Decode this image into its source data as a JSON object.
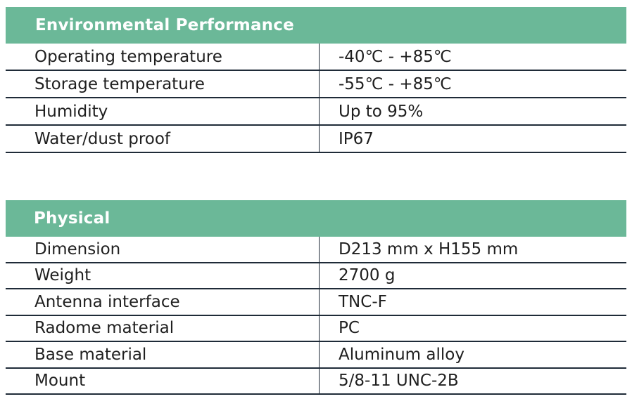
{
  "environmental": {
    "title": "Environmental Performance",
    "rows": [
      {
        "label": "Operating temperature",
        "value": "-40℃ - +85℃"
      },
      {
        "label": "Storage temperature",
        "value": "-55℃ - +85℃"
      },
      {
        "label": "Humidity",
        "value": "Up to 95%"
      },
      {
        "label": "Water/dust proof",
        "value": "IP67"
      }
    ]
  },
  "physical": {
    "title": "Physical",
    "rows": [
      {
        "label": "Dimension",
        "value": "D213 mm x H155 mm"
      },
      {
        "label": "Weight",
        "value": "2700 g"
      },
      {
        "label": "Antenna interface",
        "value": "TNC-F"
      },
      {
        "label": "Radome material",
        "value": "PC"
      },
      {
        "label": "Base material",
        "value": "Aluminum alloy"
      },
      {
        "label": "Mount",
        "value": "5/8-11 UNC-2B"
      }
    ]
  },
  "colors": {
    "header_bg": "#6bb898",
    "rule": "#1f2b38"
  }
}
